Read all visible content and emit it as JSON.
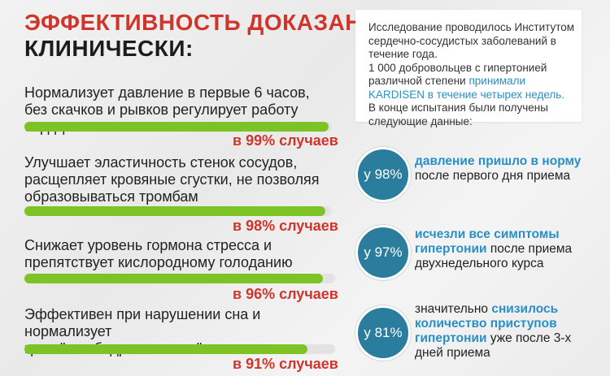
{
  "header": {
    "line1": "ЭФФЕКТИВНОСТЬ ДОКАЗАНА",
    "line2": "КЛИНИЧЕСКИ:"
  },
  "features": [
    {
      "lines": [
        "Нормализует давление в первые 6 часов,",
        "без скачков и рывков регулирует работу сердца"
      ],
      "percent": 99,
      "result": "в 99% случаев"
    },
    {
      "lines": [
        "Улучшает эластичность стенок сосудов,",
        "расщепляет кровяные сгустки, не позволяя",
        "образовываться тромбам"
      ],
      "percent": 98,
      "result": "в 98% случаев"
    },
    {
      "lines": [
        "Снижает уровень гормона стресса и",
        "препятствует кислородному голоданию"
      ],
      "percent": 96,
      "result": "в 96% случаев"
    },
    {
      "lines": [
        "Эффективен при нарушении сна и нормализует",
        "цикл \"сон-бодрствование\""
      ],
      "percent": 91,
      "result": "в 91% случаев"
    }
  ],
  "study": {
    "p1": "Исследование проводилось Институтом сердечно-сосудистых заболеваний в течение года.",
    "p2a": "1 000 добровольцев с гипертонией различной степени ",
    "p2b": "принимали KARDISEN в течение четырех недель.",
    "p3": "В конце испытания были получены следующие данные:"
  },
  "results": [
    {
      "badge": "у 98%",
      "pre": "",
      "hl": "давление пришло в норму",
      "post": " после первого дня приема"
    },
    {
      "badge": "у 97%",
      "pre": "",
      "hl": "исчезли все симптомы гипертонии",
      "post": " после приема двухнедельного курса"
    },
    {
      "badge": "у 81%",
      "pre": "значительно ",
      "hl": "снизилось количество приступов гипертонии",
      "post": " уже после 3-х дней приема"
    }
  ],
  "colors": {
    "accent_red": "#d0352c",
    "bar_green": "#7ec326",
    "circle_blue": "#2a7d9c",
    "highlight_blue": "#2a8fc4"
  }
}
